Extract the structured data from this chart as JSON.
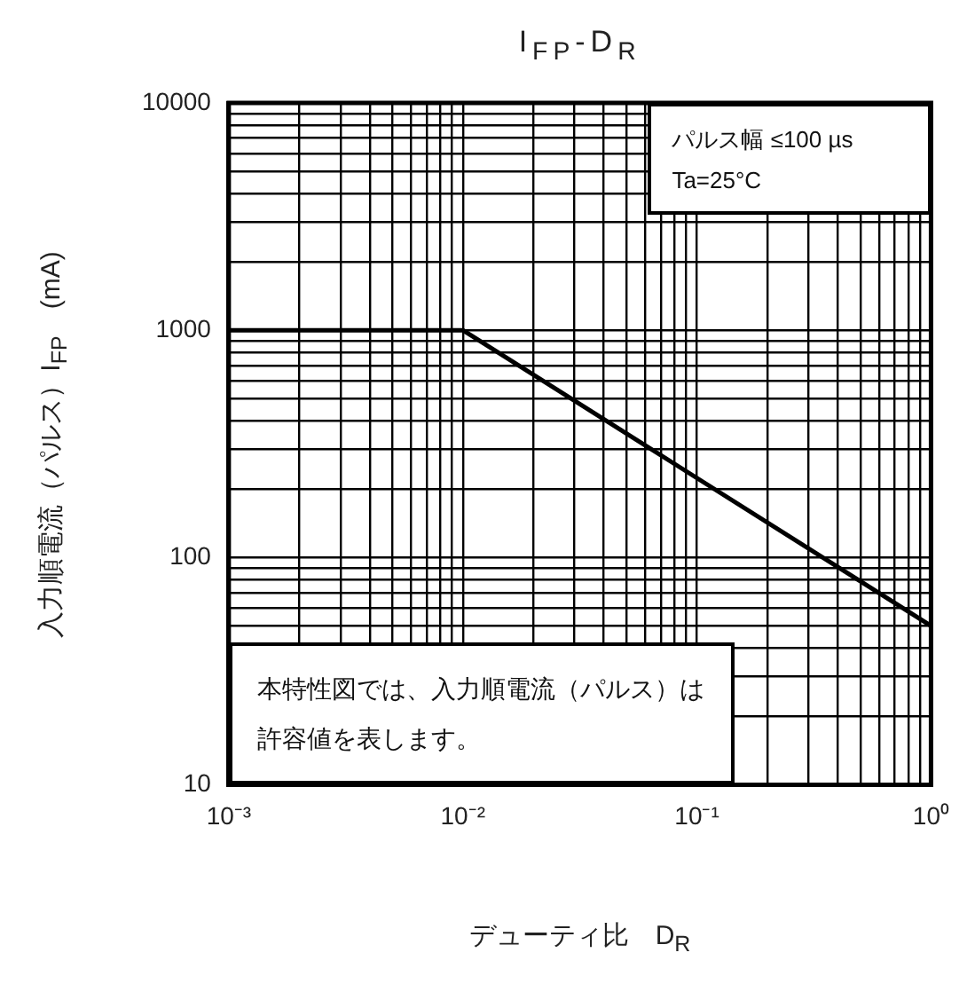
{
  "chart_data": {
    "type": "line",
    "title": "I$_{FP}$-D$_{R}$",
    "xlabel": "デューティ比　D$_{R}$",
    "ylabel": "入力順電流（パルス）I$_{FP}$　(mA)",
    "log": "xy",
    "grid": true,
    "legend": false,
    "marker": "none",
    "line_style": "solid",
    "x": [
      0.001,
      0.01,
      1
    ],
    "series": [
      {
        "color": "#000000",
        "values": [
          1000,
          1000,
          50
        ]
      }
    ],
    "xlim": [
      0.001,
      1
    ],
    "xticks": [
      {
        "value": 0.001,
        "label": "10⁻³"
      },
      {
        "value": 0.002,
        "label": null
      },
      {
        "value": 0.003,
        "label": null
      },
      {
        "value": 0.004,
        "label": null
      },
      {
        "value": 0.005,
        "label": null
      },
      {
        "value": 0.006,
        "label": null
      },
      {
        "value": 0.007,
        "label": null
      },
      {
        "value": 0.008,
        "label": null
      },
      {
        "value": 0.009,
        "label": null
      },
      {
        "value": 0.01,
        "label": "10⁻²"
      },
      {
        "value": 0.02,
        "label": null
      },
      {
        "value": 0.03,
        "label": null
      },
      {
        "value": 0.04,
        "label": null
      },
      {
        "value": 0.05,
        "label": null
      },
      {
        "value": 0.06,
        "label": null
      },
      {
        "value": 0.07,
        "label": null
      },
      {
        "value": 0.08,
        "label": null
      },
      {
        "value": 0.09,
        "label": null
      },
      {
        "value": 0.1,
        "label": "10⁻¹"
      },
      {
        "value": 0.2,
        "label": null
      },
      {
        "value": 0.3,
        "label": null
      },
      {
        "value": 0.4,
        "label": null
      },
      {
        "value": 0.5,
        "label": null
      },
      {
        "value": 0.6,
        "label": null
      },
      {
        "value": 0.7,
        "label": null
      },
      {
        "value": 0.8,
        "label": null
      },
      {
        "value": 0.9,
        "label": null
      },
      {
        "value": 1,
        "label": "10⁰"
      }
    ],
    "ylim": [
      10,
      10000
    ],
    "yticks": [
      10,
      {
        "value": 20,
        "label": null
      },
      {
        "value": 30,
        "label": null
      },
      {
        "value": 40,
        "label": null
      },
      {
        "value": 50,
        "label": null
      },
      {
        "value": 60,
        "label": null
      },
      {
        "value": 70,
        "label": null
      },
      {
        "value": 80,
        "label": null
      },
      {
        "value": 90,
        "label": null
      },
      100,
      {
        "value": 200,
        "label": null
      },
      {
        "value": 300,
        "label": null
      },
      {
        "value": 400,
        "label": null
      },
      {
        "value": 500,
        "label": null
      },
      {
        "value": 600,
        "label": null
      },
      {
        "value": 700,
        "label": null
      },
      {
        "value": 800,
        "label": null
      },
      {
        "value": 900,
        "label": null
      },
      1000,
      {
        "value": 2000,
        "label": null
      },
      {
        "value": 3000,
        "label": null
      },
      {
        "value": 4000,
        "label": null
      },
      {
        "value": 5000,
        "label": null
      },
      {
        "value": 6000,
        "label": null
      },
      {
        "value": 7000,
        "label": null
      },
      {
        "value": 8000,
        "label": null
      },
      {
        "value": 9000,
        "label": null
      },
      10000
    ],
    "annotations": [
      "パルス幅 ≤100 µs",
      "Ta=25°C",
      "本特性図では、入力順電流（パルス）は許容値を表します。"
    ]
  }
}
